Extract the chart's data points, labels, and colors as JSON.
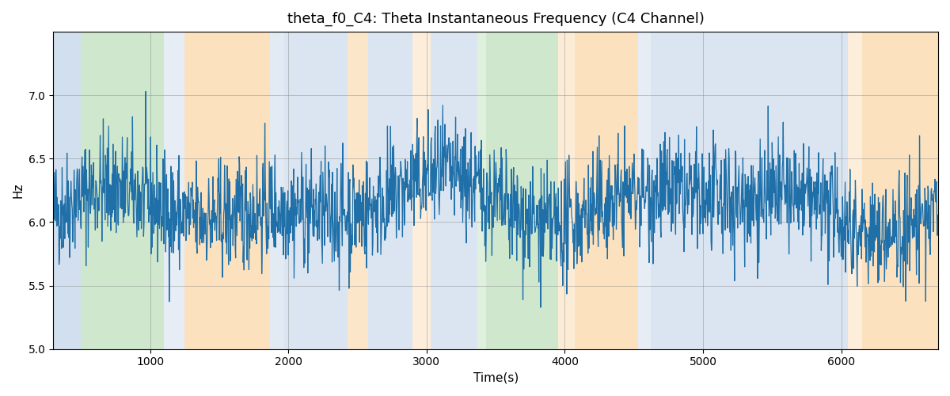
{
  "title": "theta_f0_C4: Theta Instantaneous Frequency (C4 Channel)",
  "xlabel": "Time(s)",
  "ylabel": "Hz",
  "xlim": [
    300,
    6700
  ],
  "ylim": [
    5.0,
    7.5
  ],
  "yticks": [
    5.0,
    5.5,
    6.0,
    6.5,
    7.0
  ],
  "xticks": [
    1000,
    2000,
    3000,
    4000,
    5000,
    6000
  ],
  "line_color": "#1f6fa8",
  "line_width": 0.9,
  "bg_regions": [
    {
      "xstart": 300,
      "xend": 500,
      "color": "#aec6e0",
      "alpha": 0.55
    },
    {
      "xstart": 500,
      "xend": 1100,
      "color": "#a8d5a2",
      "alpha": 0.55
    },
    {
      "xstart": 1100,
      "xend": 1250,
      "color": "#aec6e0",
      "alpha": 0.3
    },
    {
      "xstart": 1250,
      "xend": 1870,
      "color": "#f9c98a",
      "alpha": 0.55
    },
    {
      "xstart": 1870,
      "xend": 1970,
      "color": "#aec6e0",
      "alpha": 0.35
    },
    {
      "xstart": 1970,
      "xend": 2430,
      "color": "#aec6e0",
      "alpha": 0.45
    },
    {
      "xstart": 2430,
      "xend": 2580,
      "color": "#f9c98a",
      "alpha": 0.45
    },
    {
      "xstart": 2580,
      "xend": 2900,
      "color": "#aec6e0",
      "alpha": 0.45
    },
    {
      "xstart": 2900,
      "xend": 3030,
      "color": "#f9c98a",
      "alpha": 0.3
    },
    {
      "xstart": 3030,
      "xend": 3370,
      "color": "#aec6e0",
      "alpha": 0.45
    },
    {
      "xstart": 3370,
      "xend": 3430,
      "color": "#a8d5a2",
      "alpha": 0.35
    },
    {
      "xstart": 3430,
      "xend": 3950,
      "color": "#a8d5a2",
      "alpha": 0.55
    },
    {
      "xstart": 3950,
      "xend": 4070,
      "color": "#f9c98a",
      "alpha": 0.35
    },
    {
      "xstart": 4070,
      "xend": 4530,
      "color": "#f9c98a",
      "alpha": 0.55
    },
    {
      "xstart": 4530,
      "xend": 4620,
      "color": "#aec6e0",
      "alpha": 0.3
    },
    {
      "xstart": 4620,
      "xend": 6050,
      "color": "#aec6e0",
      "alpha": 0.45
    },
    {
      "xstart": 6050,
      "xend": 6150,
      "color": "#f9c98a",
      "alpha": 0.3
    },
    {
      "xstart": 6150,
      "xend": 6700,
      "color": "#f9c98a",
      "alpha": 0.55
    }
  ],
  "seed": 42,
  "n_points": 2000,
  "base_freq": 6.05
}
